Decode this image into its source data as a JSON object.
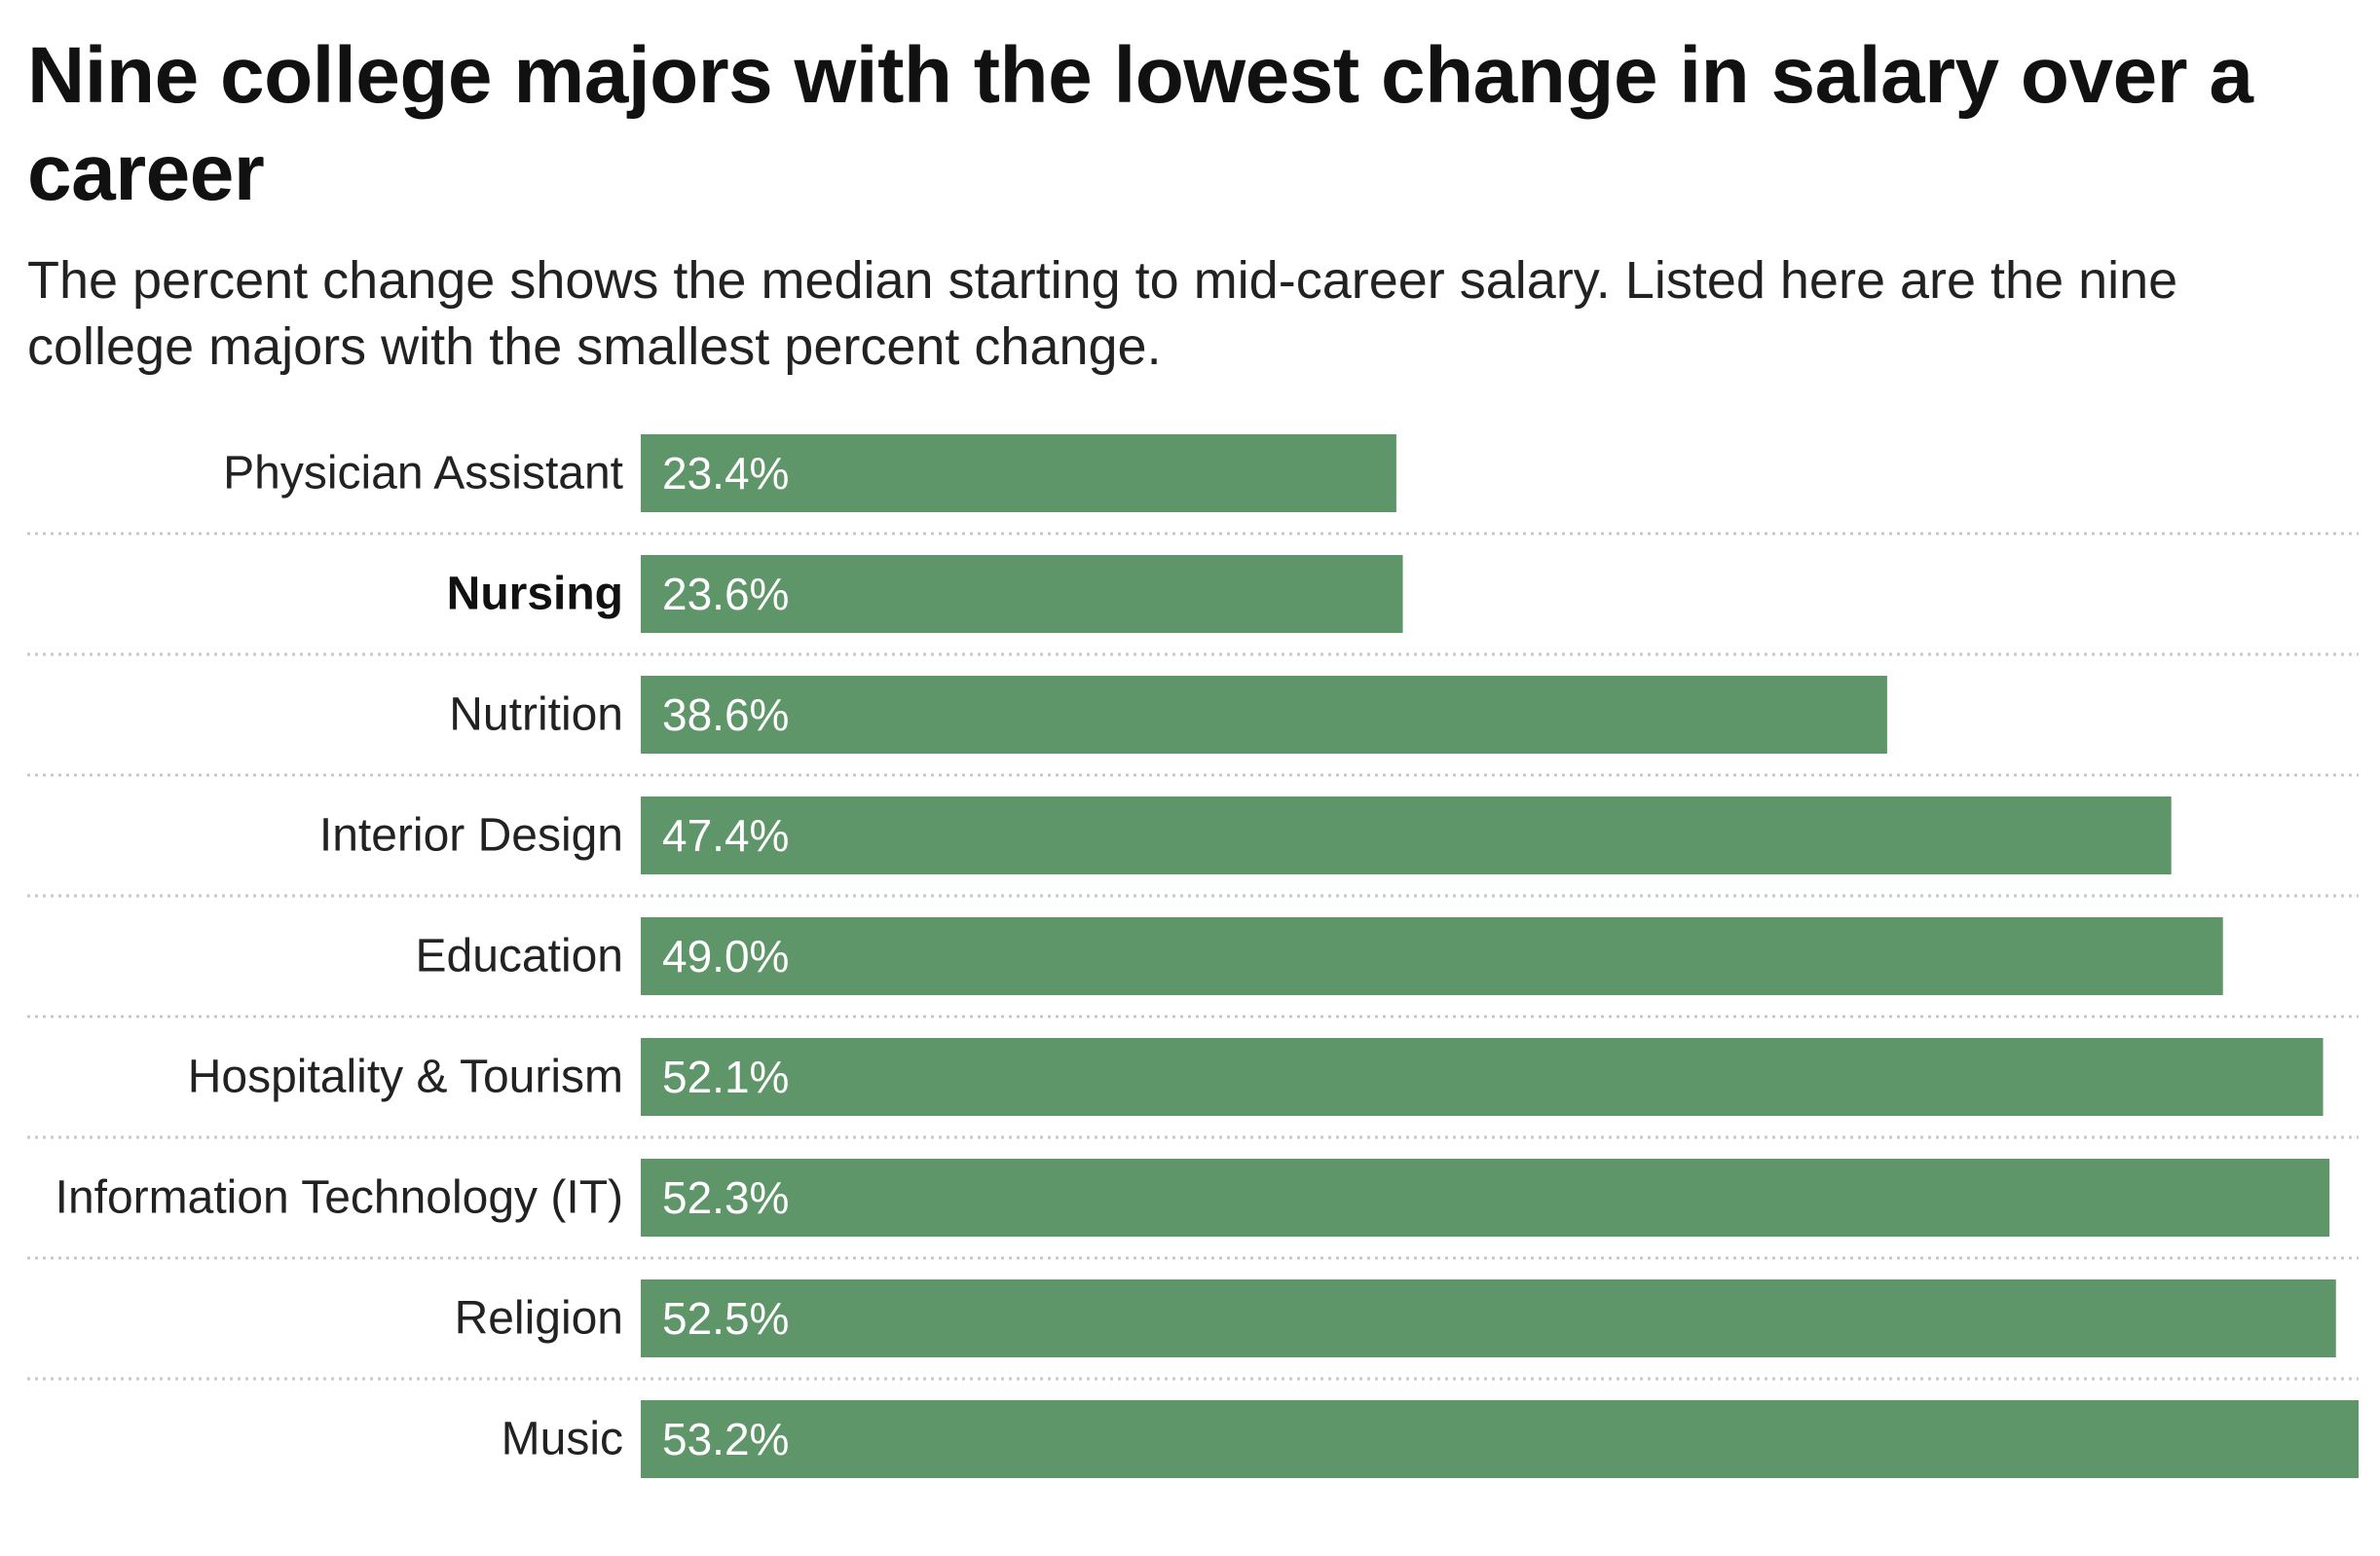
{
  "title": "Nine college majors with the lowest change in salary over a career",
  "subtitle": "The percent change shows the median starting to mid-career salary. Listed here are the nine college majors with the smallest percent change.",
  "chart_data": {
    "type": "bar",
    "orientation": "horizontal",
    "title": "Nine college majors with the lowest change in salary over a career",
    "subtitle": "The percent change shows the median starting to mid-career salary. Listed here are the nine college majors with the smallest percent change.",
    "categories": [
      "Physician Assistant",
      "Nursing",
      "Nutrition",
      "Interior Design",
      "Education",
      "Hospitality & Tourism",
      "Information Technology (IT)",
      "Religion",
      "Music"
    ],
    "values": [
      23.4,
      23.6,
      38.6,
      47.4,
      49.0,
      52.1,
      52.3,
      52.5,
      53.2
    ],
    "value_labels": [
      "23.4%",
      "23.6%",
      "38.6%",
      "47.4%",
      "49.0%",
      "52.1%",
      "52.3%",
      "52.5%",
      "53.2%"
    ],
    "highlighted_category": "Nursing",
    "xlim": [
      0,
      53.2
    ],
    "bar_color": "#5e9669",
    "value_label_color": "#ffffff",
    "grid": false,
    "xlabel": "",
    "ylabel": ""
  }
}
